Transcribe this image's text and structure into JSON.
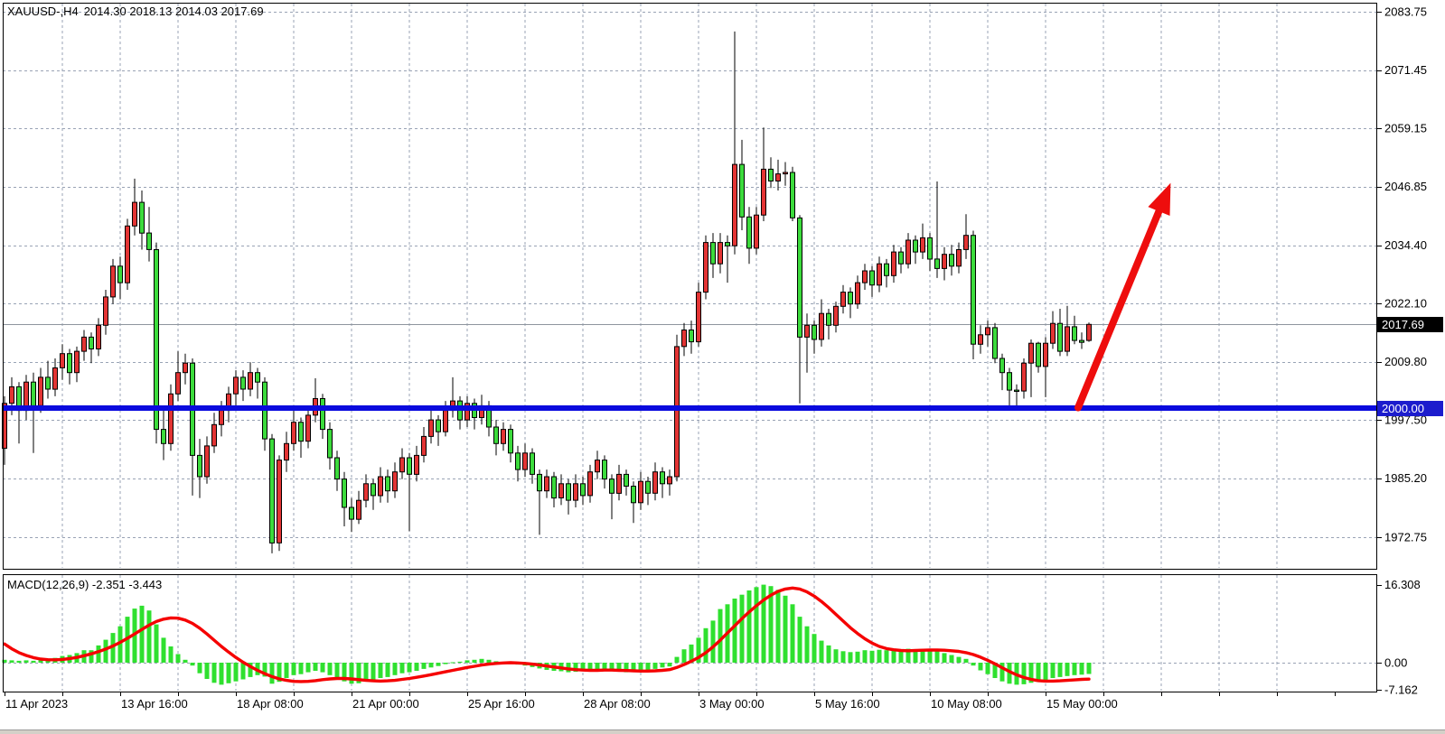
{
  "window": {
    "title_symbol": "XAUUSD-,H4",
    "ohlc_readout": "2014.30 2018.13 2014.03 2017.69"
  },
  "colors": {
    "background": "#ffffff",
    "grid": "#99a3b5",
    "bull_candle": "#e33434",
    "bear_candle": "#3cdb3c",
    "candle_outline": "#000000",
    "support_line": "#0a0ade",
    "bid_line": "#8e959e",
    "macd_histogram": "#2fe02f",
    "macd_signal": "#f50000",
    "arrow": "#ee0d0d",
    "bid_badge_bg": "#000000",
    "level_badge_bg": "#1c1ccd"
  },
  "price_axis": {
    "labels": [
      {
        "text": "2083.75",
        "value": 2083.75
      },
      {
        "text": "2071.45",
        "value": 2071.45
      },
      {
        "text": "2059.15",
        "value": 2059.15
      },
      {
        "text": "2046.85",
        "value": 2046.85
      },
      {
        "text": "2034.40",
        "value": 2034.4
      },
      {
        "text": "2022.10",
        "value": 2022.1
      },
      {
        "text": "2009.80",
        "value": 2009.8
      },
      {
        "text": "1997.50",
        "value": 1997.5
      },
      {
        "text": "1985.20",
        "value": 1985.2
      },
      {
        "text": "1972.75",
        "value": 1972.75
      }
    ],
    "bid_badge": {
      "text": "2017.69",
      "value": 2017.69
    },
    "level_badge": {
      "text": "2000.00",
      "value": 2000.0
    }
  },
  "time_axis": {
    "labels": [
      {
        "text": "11 Apr 2023",
        "bar": 0
      },
      {
        "text": "13 Apr 16:00",
        "bar": 16
      },
      {
        "text": "18 Apr 08:00",
        "bar": 32
      },
      {
        "text": "21 Apr 00:00",
        "bar": 48
      },
      {
        "text": "25 Apr 16:00",
        "bar": 64
      },
      {
        "text": "28 Apr 08:00",
        "bar": 80
      },
      {
        "text": "3 May 00:00",
        "bar": 96
      },
      {
        "text": "5 May 16:00",
        "bar": 112
      },
      {
        "text": "10 May 08:00",
        "bar": 128
      },
      {
        "text": "15 May 00:00",
        "bar": 144
      }
    ]
  },
  "indicator": {
    "label": "MACD(12,26,9) -2.351 -3.443",
    "name": "MACD",
    "params": [
      12,
      26,
      9
    ],
    "current_main": -2.351,
    "current_signal": -3.443,
    "axis_labels": [
      {
        "text": "16.308",
        "value": 16.308
      },
      {
        "text": "0.00",
        "value": 0.0
      },
      {
        "text": "-7.162",
        "value": -7.162
      }
    ]
  },
  "chart_data": {
    "type": "candlestick",
    "symbol": "XAUUSD",
    "timeframe": "H4",
    "bull_color_meaning": "red bodies are bullish, green bodies are bearish in this theme",
    "support_line_price": 2000.0,
    "bid_price": 2017.69,
    "arrow": {
      "start": {
        "bar": 148.5,
        "price": 2000.1
      },
      "end": {
        "bar": 161.3,
        "price": 2047.6
      }
    },
    "ylim": [
      1966,
      2090
    ],
    "candles": [
      [
        1991.5,
        2002.5,
        1988.0,
        2001.0
      ],
      [
        2001.0,
        2006.5,
        1998.5,
        2004.5
      ],
      [
        2004.5,
        2005.5,
        1992.5,
        1999.5
      ],
      [
        1999.5,
        2007.0,
        1997.5,
        2005.5
      ],
      [
        2005.5,
        2007.5,
        1990.5,
        2000.5
      ],
      [
        2000.5,
        2008.5,
        1999.0,
        2006.5
      ],
      [
        2006.5,
        2010.0,
        2002.0,
        2004.0
      ],
      [
        2004.0,
        2010.5,
        2002.5,
        2008.5
      ],
      [
        2008.5,
        2013.5,
        2006.0,
        2011.5
      ],
      [
        2011.5,
        2012.5,
        2005.0,
        2007.5
      ],
      [
        2007.5,
        2013.0,
        2005.5,
        2012.0
      ],
      [
        2012.0,
        2016.5,
        2010.0,
        2015.0
      ],
      [
        2015.0,
        2016.0,
        2009.5,
        2012.5
      ],
      [
        2012.5,
        2019.0,
        2011.0,
        2017.5
      ],
      [
        2017.5,
        2025.0,
        2015.5,
        2023.5
      ],
      [
        2023.5,
        2031.5,
        2022.0,
        2030.0
      ],
      [
        2030.0,
        2032.0,
        2023.0,
        2026.5
      ],
      [
        2026.5,
        2040.0,
        2025.0,
        2038.5
      ],
      [
        2038.5,
        2048.5,
        2036.5,
        2043.5
      ],
      [
        2043.5,
        2046.0,
        2033.5,
        2037.0
      ],
      [
        2037.0,
        2042.5,
        2031.0,
        2033.5
      ],
      [
        2033.5,
        2035.0,
        1992.5,
        1995.5
      ],
      [
        1995.5,
        2000.0,
        1989.0,
        1992.5
      ],
      [
        1992.5,
        2005.0,
        1991.0,
        2003.0
      ],
      [
        2003.0,
        2012.0,
        2001.5,
        2007.5
      ],
      [
        2007.5,
        2011.5,
        2005.0,
        2009.5
      ],
      [
        2009.5,
        2010.5,
        1981.5,
        1990.0
      ],
      [
        1990.0,
        1993.5,
        1981.0,
        1985.5
      ],
      [
        1985.5,
        1994.0,
        1984.0,
        1992.0
      ],
      [
        1992.0,
        1999.0,
        1990.5,
        1996.5
      ],
      [
        1996.5,
        2001.5,
        1994.0,
        1999.5
      ],
      [
        1999.5,
        2004.5,
        1997.0,
        2003.0
      ],
      [
        2003.0,
        2008.0,
        2000.5,
        2006.5
      ],
      [
        2006.5,
        2008.0,
        2001.5,
        2004.0
      ],
      [
        2004.0,
        2009.7,
        2002.5,
        2007.5
      ],
      [
        2007.5,
        2008.5,
        2002.0,
        2005.5
      ],
      [
        2005.5,
        2006.5,
        1991.0,
        1993.5
      ],
      [
        1993.5,
        1994.5,
        1969.3,
        1971.5
      ],
      [
        1971.5,
        1990.0,
        1969.8,
        1989.0
      ],
      [
        1989.0,
        1995.0,
        1986.5,
        1992.5
      ],
      [
        1992.5,
        1999.5,
        1991.0,
        1997.0
      ],
      [
        1997.0,
        1998.0,
        1989.5,
        1993.0
      ],
      [
        1993.0,
        2000.5,
        1991.5,
        1998.5
      ],
      [
        1998.5,
        2006.3,
        1997.0,
        2002.0
      ],
      [
        2002.0,
        2003.0,
        1993.5,
        1995.5
      ],
      [
        1995.5,
        1997.0,
        1987.0,
        1989.5
      ],
      [
        1989.5,
        1991.0,
        1982.5,
        1985.0
      ],
      [
        1985.0,
        1986.5,
        1975.0,
        1979.0
      ],
      [
        1979.0,
        1981.0,
        1973.8,
        1976.5
      ],
      [
        1976.5,
        1982.5,
        1975.5,
        1980.5
      ],
      [
        1980.5,
        1986.0,
        1979.0,
        1984.0
      ],
      [
        1984.0,
        1985.0,
        1978.5,
        1981.5
      ],
      [
        1981.5,
        1987.5,
        1980.0,
        1985.5
      ],
      [
        1985.5,
        1987.0,
        1980.0,
        1982.5
      ],
      [
        1982.5,
        1988.5,
        1981.0,
        1986.5
      ],
      [
        1986.5,
        1991.5,
        1985.0,
        1989.5
      ],
      [
        1989.5,
        1990.5,
        1974.0,
        1986.0
      ],
      [
        1986.0,
        1992.0,
        1984.5,
        1990.0
      ],
      [
        1990.0,
        1996.0,
        1988.5,
        1994.0
      ],
      [
        1994.0,
        1999.5,
        1992.5,
        1997.5
      ],
      [
        1997.5,
        1998.5,
        1992.0,
        1995.0
      ],
      [
        1995.0,
        2001.5,
        1994.0,
        1999.5
      ],
      [
        1999.5,
        2006.5,
        1998.0,
        2001.5
      ],
      [
        2001.5,
        2002.5,
        1995.5,
        1997.5
      ],
      [
        1997.5,
        2002.5,
        1996.0,
        2001.0
      ],
      [
        2001.0,
        2002.0,
        1995.5,
        1998.0
      ],
      [
        1998.0,
        2002.8,
        1996.5,
        2000.5
      ],
      [
        2000.5,
        2001.5,
        1994.0,
        1996.0
      ],
      [
        1996.0,
        1997.5,
        1990.0,
        1992.5
      ],
      [
        1992.5,
        1997.0,
        1991.0,
        1995.5
      ],
      [
        1995.5,
        1996.5,
        1988.5,
        1990.5
      ],
      [
        1990.5,
        1992.0,
        1984.5,
        1987.0
      ],
      [
        1987.0,
        1992.5,
        1985.5,
        1990.5
      ],
      [
        1990.5,
        1991.5,
        1984.0,
        1986.0
      ],
      [
        1986.0,
        1987.0,
        1973.2,
        1982.5
      ],
      [
        1982.5,
        1987.0,
        1981.0,
        1985.5
      ],
      [
        1985.5,
        1986.5,
        1979.0,
        1981.0
      ],
      [
        1981.0,
        1986.0,
        1979.5,
        1984.0
      ],
      [
        1984.0,
        1985.0,
        1977.5,
        1980.5
      ],
      [
        1980.5,
        1986.0,
        1979.0,
        1984.0
      ],
      [
        1984.0,
        1985.5,
        1979.5,
        1981.5
      ],
      [
        1981.5,
        1988.0,
        1980.0,
        1986.5
      ],
      [
        1986.5,
        1991.0,
        1985.0,
        1989.0
      ],
      [
        1989.0,
        1990.0,
        1983.0,
        1985.0
      ],
      [
        1985.0,
        1986.0,
        1976.5,
        1982.0
      ],
      [
        1982.0,
        1988.0,
        1980.5,
        1986.0
      ],
      [
        1986.0,
        1987.0,
        1981.5,
        1983.5
      ],
      [
        1983.5,
        1984.5,
        1975.7,
        1980.0
      ],
      [
        1980.0,
        1986.5,
        1978.5,
        1984.5
      ],
      [
        1984.5,
        1985.5,
        1979.5,
        1982.0
      ],
      [
        1982.0,
        1988.5,
        1980.5,
        1986.5
      ],
      [
        1986.5,
        1987.5,
        1981.0,
        1984.0
      ],
      [
        1984.0,
        1987.0,
        1981.5,
        1985.5
      ],
      [
        1985.5,
        2015.5,
        1984.5,
        2013.0
      ],
      [
        2013.0,
        2018.0,
        2011.0,
        2016.5
      ],
      [
        2016.5,
        2018.5,
        2011.5,
        2014.0
      ],
      [
        2014.0,
        2026.5,
        2013.0,
        2024.5
      ],
      [
        2024.5,
        2036.5,
        2023.0,
        2035.0
      ],
      [
        2035.0,
        2037.0,
        2027.5,
        2030.5
      ],
      [
        2030.5,
        2037.0,
        2028.5,
        2035.0
      ],
      [
        2035.0,
        2036.5,
        2026.5,
        2034.3
      ],
      [
        2034.3,
        2079.6,
        2032.5,
        2051.5
      ],
      [
        2051.5,
        2056.7,
        2037.6,
        2040.4
      ],
      [
        2040.4,
        2042.5,
        2030.5,
        2033.8
      ],
      [
        2033.8,
        2042.5,
        2032.5,
        2040.8
      ],
      [
        2040.8,
        2059.3,
        2039.5,
        2050.5
      ],
      [
        2050.5,
        2053.0,
        2046.5,
        2048.0
      ],
      [
        2048.0,
        2052.5,
        2046.0,
        2049.5
      ],
      [
        2049.5,
        2052.0,
        2047.0,
        2049.8
      ],
      [
        2049.8,
        2051.0,
        2039.5,
        2040.2
      ],
      [
        2040.2,
        2040.8,
        2001.0,
        2015.0
      ],
      [
        2015.0,
        2020.0,
        2007.5,
        2017.5
      ],
      [
        2017.5,
        2018.5,
        2011.5,
        2014.5
      ],
      [
        2014.5,
        2023.0,
        2013.0,
        2020.0
      ],
      [
        2020.0,
        2021.0,
        2014.5,
        2017.5
      ],
      [
        2017.5,
        2022.5,
        2016.0,
        2021.5
      ],
      [
        2021.5,
        2026.0,
        2020.0,
        2024.5
      ],
      [
        2024.5,
        2025.5,
        2019.0,
        2022.0
      ],
      [
        2022.0,
        2028.0,
        2021.0,
        2026.5
      ],
      [
        2026.5,
        2030.5,
        2025.0,
        2029.0
      ],
      [
        2029.0,
        2030.0,
        2023.5,
        2026.0
      ],
      [
        2026.0,
        2032.0,
        2024.5,
        2030.5
      ],
      [
        2030.5,
        2031.5,
        2025.5,
        2028.0
      ],
      [
        2028.0,
        2034.5,
        2026.5,
        2033.0
      ],
      [
        2033.0,
        2034.0,
        2028.5,
        2030.5
      ],
      [
        2030.5,
        2037.0,
        2029.5,
        2035.5
      ],
      [
        2035.5,
        2036.5,
        2030.5,
        2033.0
      ],
      [
        2033.0,
        2039.0,
        2031.5,
        2036.0
      ],
      [
        2036.0,
        2037.0,
        2029.0,
        2031.5
      ],
      [
        2031.5,
        2047.9,
        2027.5,
        2029.5
      ],
      [
        2029.5,
        2034.0,
        2027.0,
        2032.5
      ],
      [
        2032.5,
        2034.5,
        2028.0,
        2030.0
      ],
      [
        2030.0,
        2035.0,
        2028.5,
        2033.5
      ],
      [
        2033.5,
        2041.0,
        2031.5,
        2036.5
      ],
      [
        2036.5,
        2037.5,
        2010.3,
        2013.5
      ],
      [
        2013.5,
        2017.5,
        2011.5,
        2015.5
      ],
      [
        2015.5,
        2018.5,
        2013.0,
        2017.0
      ],
      [
        2017.0,
        2018.0,
        2009.5,
        2010.5
      ],
      [
        2010.5,
        2011.5,
        2003.8,
        2007.5
      ],
      [
        2007.5,
        2008.5,
        2000.1,
        2003.8
      ],
      [
        2003.8,
        2005.0,
        1999.9,
        2003.6
      ],
      [
        2003.6,
        2010.5,
        2002.0,
        2009.5
      ],
      [
        2009.5,
        2014.5,
        2002.3,
        2013.7
      ],
      [
        2013.7,
        2014.0,
        2007.5,
        2008.8
      ],
      [
        2008.8,
        2015.0,
        2002.3,
        2013.7
      ],
      [
        2013.7,
        2020.5,
        2012.5,
        2017.9
      ],
      [
        2017.9,
        2021.0,
        2011.0,
        2012.0
      ],
      [
        2012.0,
        2021.6,
        2011.0,
        2017.2
      ],
      [
        2017.2,
        2019.5,
        2013.5,
        2014.3
      ],
      [
        2014.3,
        2016.0,
        2012.5,
        2013.9
      ],
      [
        2014.3,
        2018.1,
        2014.0,
        2017.7
      ]
    ],
    "macd": {
      "histogram": [
        0.6,
        0.5,
        0.4,
        0.5,
        0.4,
        0.6,
        0.8,
        1.0,
        1.4,
        1.6,
        2.0,
        2.6,
        2.6,
        3.6,
        4.8,
        6.2,
        7.6,
        9.6,
        11.3,
        11.9,
        10.9,
        8.0,
        5.2,
        3.4,
        1.8,
        0.6,
        -0.6,
        -2.2,
        -3.4,
        -4.2,
        -4.6,
        -4.3,
        -3.9,
        -3.5,
        -3.0,
        -2.6,
        -2.9,
        -4.4,
        -4.0,
        -3.2,
        -2.6,
        -2.4,
        -2.0,
        -1.7,
        -2.0,
        -2.6,
        -3.2,
        -3.9,
        -4.4,
        -4.3,
        -3.9,
        -3.6,
        -3.2,
        -3.0,
        -2.6,
        -2.2,
        -2.0,
        -1.7,
        -1.3,
        -1.0,
        -0.7,
        -0.3,
        0.1,
        0.2,
        0.5,
        0.6,
        0.8,
        0.6,
        0.3,
        0.1,
        -0.2,
        -0.4,
        -0.6,
        -0.9,
        -1.2,
        -1.5,
        -1.7,
        -1.8,
        -2.0,
        -1.9,
        -1.8,
        -1.6,
        -1.4,
        -1.5,
        -1.6,
        -1.8,
        -2.0,
        -1.9,
        -1.8,
        -1.5,
        -1.3,
        -1.0,
        -0.8,
        1.2,
        2.8,
        3.8,
        5.2,
        7.2,
        8.8,
        11.2,
        12.2,
        13.4,
        14.2,
        15.1,
        15.8,
        16.3,
        16.0,
        15.2,
        14.0,
        12.2,
        9.6,
        7.6,
        6.0,
        4.6,
        3.6,
        2.8,
        2.4,
        2.2,
        2.3,
        2.6,
        2.5,
        2.7,
        2.6,
        2.8,
        2.7,
        2.9,
        2.7,
        2.8,
        2.6,
        2.4,
        2.0,
        1.6,
        1.2,
        0.8,
        -0.6,
        -1.6,
        -2.4,
        -3.2,
        -3.9,
        -4.4,
        -4.6,
        -4.5,
        -4.2,
        -4.0,
        -3.6,
        -3.2,
        -3.0,
        -2.8,
        -2.6,
        -2.5,
        -2.351
      ],
      "signal": [
        3.9,
        2.9,
        2.1,
        1.5,
        1.05,
        0.75,
        0.62,
        0.6,
        0.68,
        0.85,
        1.1,
        1.45,
        1.85,
        2.3,
        2.85,
        3.5,
        4.25,
        5.1,
        6.0,
        6.95,
        7.85,
        8.6,
        9.1,
        9.35,
        9.3,
        8.9,
        8.2,
        7.2,
        6.0,
        4.7,
        3.4,
        2.2,
        1.1,
        0.1,
        -0.8,
        -1.6,
        -2.3,
        -2.9,
        -3.4,
        -3.7,
        -3.9,
        -3.95,
        -3.9,
        -3.75,
        -3.55,
        -3.4,
        -3.3,
        -3.3,
        -3.4,
        -3.55,
        -3.7,
        -3.8,
        -3.85,
        -3.8,
        -3.7,
        -3.5,
        -3.3,
        -3.05,
        -2.8,
        -2.5,
        -2.2,
        -1.9,
        -1.6,
        -1.3,
        -1.0,
        -0.75,
        -0.5,
        -0.3,
        -0.15,
        -0.05,
        0.0,
        -0.05,
        -0.15,
        -0.3,
        -0.5,
        -0.7,
        -0.9,
        -1.1,
        -1.3,
        -1.45,
        -1.55,
        -1.6,
        -1.6,
        -1.55,
        -1.55,
        -1.6,
        -1.65,
        -1.7,
        -1.75,
        -1.75,
        -1.7,
        -1.6,
        -1.45,
        -1.0,
        -0.4,
        0.3,
        1.1,
        2.1,
        3.3,
        4.7,
        6.2,
        7.7,
        9.2,
        10.6,
        11.9,
        13.1,
        14.1,
        14.9,
        15.4,
        15.6,
        15.4,
        14.8,
        13.9,
        12.8,
        11.5,
        10.1,
        8.7,
        7.3,
        6.1,
        5.0,
        4.1,
        3.4,
        2.95,
        2.7,
        2.55,
        2.5,
        2.55,
        2.6,
        2.65,
        2.65,
        2.6,
        2.5,
        2.35,
        2.1,
        1.7,
        1.15,
        0.5,
        -0.25,
        -1.05,
        -1.85,
        -2.55,
        -3.1,
        -3.5,
        -3.75,
        -3.85,
        -3.85,
        -3.8,
        -3.7,
        -3.6,
        -3.5,
        -3.443
      ]
    }
  }
}
